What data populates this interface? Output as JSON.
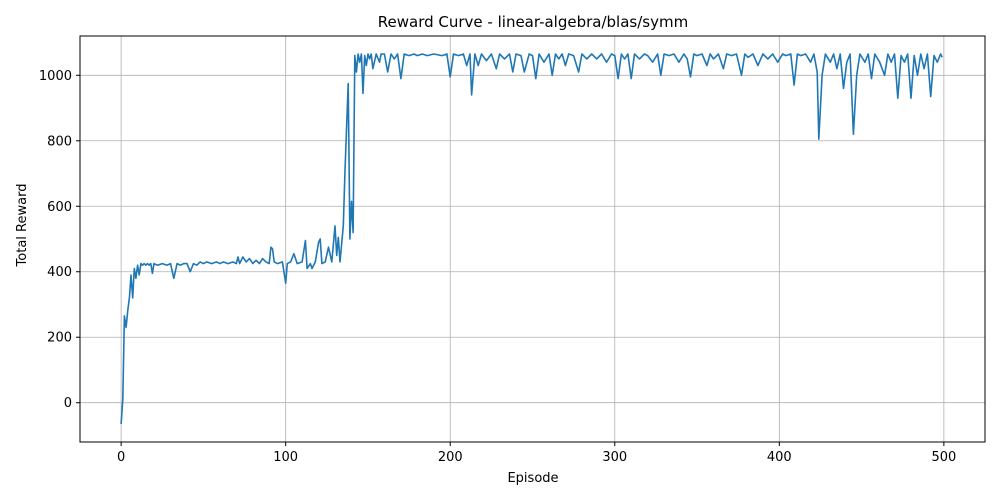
{
  "chart_data": {
    "type": "line",
    "title": "Reward Curve - linear-algebra/blas/symm",
    "xlabel": "Episode",
    "ylabel": "Total Reward",
    "xlim": [
      -25,
      525
    ],
    "ylim": [
      -120,
      1120
    ],
    "xticks": [
      0,
      100,
      200,
      300,
      400,
      500
    ],
    "yticks": [
      0,
      200,
      400,
      600,
      800,
      1000
    ],
    "grid": true,
    "series": [
      {
        "color": "#1f77b4",
        "points": [
          [
            0,
            -65
          ],
          [
            1,
            10
          ],
          [
            2,
            265
          ],
          [
            3,
            230
          ],
          [
            4,
            280
          ],
          [
            5,
            320
          ],
          [
            6,
            390
          ],
          [
            7,
            320
          ],
          [
            8,
            410
          ],
          [
            9,
            380
          ],
          [
            10,
            420
          ],
          [
            11,
            390
          ],
          [
            12,
            425
          ],
          [
            13,
            420
          ],
          [
            14,
            425
          ],
          [
            15,
            420
          ],
          [
            16,
            425
          ],
          [
            17,
            420
          ],
          [
            18,
            425
          ],
          [
            19,
            395
          ],
          [
            20,
            425
          ],
          [
            22,
            420
          ],
          [
            25,
            425
          ],
          [
            28,
            420
          ],
          [
            30,
            425
          ],
          [
            32,
            380
          ],
          [
            34,
            425
          ],
          [
            36,
            420
          ],
          [
            38,
            425
          ],
          [
            40,
            425
          ],
          [
            42,
            400
          ],
          [
            44,
            425
          ],
          [
            46,
            420
          ],
          [
            48,
            430
          ],
          [
            50,
            425
          ],
          [
            52,
            430
          ],
          [
            55,
            425
          ],
          [
            58,
            430
          ],
          [
            60,
            425
          ],
          [
            62,
            430
          ],
          [
            65,
            425
          ],
          [
            68,
            430
          ],
          [
            70,
            425
          ],
          [
            71,
            445
          ],
          [
            72,
            425
          ],
          [
            74,
            445
          ],
          [
            76,
            430
          ],
          [
            78,
            440
          ],
          [
            80,
            425
          ],
          [
            82,
            435
          ],
          [
            84,
            425
          ],
          [
            86,
            440
          ],
          [
            88,
            430
          ],
          [
            90,
            425
          ],
          [
            91,
            475
          ],
          [
            92,
            470
          ],
          [
            93,
            430
          ],
          [
            95,
            425
          ],
          [
            98,
            430
          ],
          [
            100,
            365
          ],
          [
            101,
            425
          ],
          [
            103,
            430
          ],
          [
            105,
            455
          ],
          [
            107,
            425
          ],
          [
            110,
            430
          ],
          [
            112,
            495
          ],
          [
            113,
            410
          ],
          [
            115,
            425
          ],
          [
            116,
            410
          ],
          [
            118,
            430
          ],
          [
            120,
            490
          ],
          [
            121,
            500
          ],
          [
            122,
            425
          ],
          [
            124,
            430
          ],
          [
            126,
            475
          ],
          [
            128,
            430
          ],
          [
            130,
            540
          ],
          [
            131,
            450
          ],
          [
            132,
            505
          ],
          [
            133,
            430
          ],
          [
            135,
            540
          ],
          [
            136,
            700
          ],
          [
            138,
            975
          ],
          [
            139,
            500
          ],
          [
            140,
            615
          ],
          [
            141,
            520
          ],
          [
            142,
            1060
          ],
          [
            143,
            1010
          ],
          [
            144,
            1065
          ],
          [
            145,
            1040
          ],
          [
            146,
            1065
          ],
          [
            147,
            945
          ],
          [
            148,
            1060
          ],
          [
            149,
            1030
          ],
          [
            150,
            1065
          ],
          [
            151,
            1050
          ],
          [
            152,
            1065
          ],
          [
            153,
            1020
          ],
          [
            155,
            1065
          ],
          [
            157,
            1040
          ],
          [
            158,
            1065
          ],
          [
            160,
            1065
          ],
          [
            162,
            1010
          ],
          [
            164,
            1065
          ],
          [
            166,
            1050
          ],
          [
            168,
            1065
          ],
          [
            170,
            990
          ],
          [
            172,
            1065
          ],
          [
            175,
            1060
          ],
          [
            178,
            1065
          ],
          [
            180,
            1060
          ],
          [
            183,
            1065
          ],
          [
            186,
            1060
          ],
          [
            190,
            1065
          ],
          [
            195,
            1060
          ],
          [
            198,
            1065
          ],
          [
            200,
            995
          ],
          [
            202,
            1065
          ],
          [
            205,
            1060
          ],
          [
            208,
            1065
          ],
          [
            210,
            1030
          ],
          [
            212,
            1065
          ],
          [
            213,
            940
          ],
          [
            215,
            1065
          ],
          [
            217,
            1030
          ],
          [
            219,
            1065
          ],
          [
            222,
            1045
          ],
          [
            225,
            1065
          ],
          [
            228,
            1020
          ],
          [
            230,
            1065
          ],
          [
            233,
            1050
          ],
          [
            236,
            1065
          ],
          [
            238,
            1010
          ],
          [
            240,
            1065
          ],
          [
            243,
            1060
          ],
          [
            245,
            1010
          ],
          [
            248,
            1065
          ],
          [
            250,
            1060
          ],
          [
            252,
            990
          ],
          [
            254,
            1065
          ],
          [
            257,
            1040
          ],
          [
            260,
            1065
          ],
          [
            262,
            1000
          ],
          [
            264,
            1065
          ],
          [
            266,
            1050
          ],
          [
            268,
            1065
          ],
          [
            270,
            1030
          ],
          [
            272,
            1065
          ],
          [
            275,
            1060
          ],
          [
            278,
            1010
          ],
          [
            280,
            1065
          ],
          [
            283,
            1050
          ],
          [
            286,
            1065
          ],
          [
            289,
            1050
          ],
          [
            292,
            1065
          ],
          [
            295,
            1040
          ],
          [
            298,
            1065
          ],
          [
            300,
            1060
          ],
          [
            302,
            990
          ],
          [
            304,
            1065
          ],
          [
            306,
            1050
          ],
          [
            308,
            1065
          ],
          [
            310,
            990
          ],
          [
            312,
            1065
          ],
          [
            315,
            1050
          ],
          [
            318,
            1065
          ],
          [
            320,
            1060
          ],
          [
            323,
            1040
          ],
          [
            326,
            1065
          ],
          [
            328,
            1000
          ],
          [
            330,
            1065
          ],
          [
            333,
            1060
          ],
          [
            336,
            1065
          ],
          [
            339,
            1040
          ],
          [
            342,
            1065
          ],
          [
            344,
            1050
          ],
          [
            346,
            995
          ],
          [
            348,
            1065
          ],
          [
            350,
            1060
          ],
          [
            353,
            1065
          ],
          [
            356,
            1030
          ],
          [
            358,
            1065
          ],
          [
            360,
            1050
          ],
          [
            363,
            1065
          ],
          [
            366,
            1020
          ],
          [
            368,
            1065
          ],
          [
            371,
            1060
          ],
          [
            374,
            1065
          ],
          [
            377,
            1000
          ],
          [
            379,
            1065
          ],
          [
            381,
            1055
          ],
          [
            384,
            1065
          ],
          [
            387,
            1030
          ],
          [
            390,
            1065
          ],
          [
            393,
            1050
          ],
          [
            396,
            1065
          ],
          [
            399,
            1040
          ],
          [
            402,
            1065
          ],
          [
            404,
            1060
          ],
          [
            407,
            1065
          ],
          [
            409,
            970
          ],
          [
            411,
            1065
          ],
          [
            413,
            1060
          ],
          [
            416,
            1065
          ],
          [
            419,
            1040
          ],
          [
            421,
            1065
          ],
          [
            423,
            1010
          ],
          [
            424,
            805
          ],
          [
            426,
            1000
          ],
          [
            428,
            1065
          ],
          [
            431,
            1040
          ],
          [
            433,
            1065
          ],
          [
            435,
            1020
          ],
          [
            437,
            1065
          ],
          [
            439,
            960
          ],
          [
            441,
            1040
          ],
          [
            443,
            1065
          ],
          [
            445,
            820
          ],
          [
            447,
            1000
          ],
          [
            449,
            1065
          ],
          [
            452,
            1040
          ],
          [
            454,
            1065
          ],
          [
            456,
            990
          ],
          [
            458,
            1065
          ],
          [
            461,
            1040
          ],
          [
            464,
            1000
          ],
          [
            466,
            1065
          ],
          [
            468,
            1040
          ],
          [
            470,
            1065
          ],
          [
            472,
            930
          ],
          [
            474,
            1060
          ],
          [
            476,
            1040
          ],
          [
            478,
            1065
          ],
          [
            480,
            930
          ],
          [
            482,
            1060
          ],
          [
            484,
            1000
          ],
          [
            486,
            1065
          ],
          [
            488,
            1020
          ],
          [
            490,
            1065
          ],
          [
            492,
            935
          ],
          [
            494,
            1060
          ],
          [
            496,
            1040
          ],
          [
            498,
            1065
          ],
          [
            499,
            1055
          ]
        ]
      }
    ]
  }
}
